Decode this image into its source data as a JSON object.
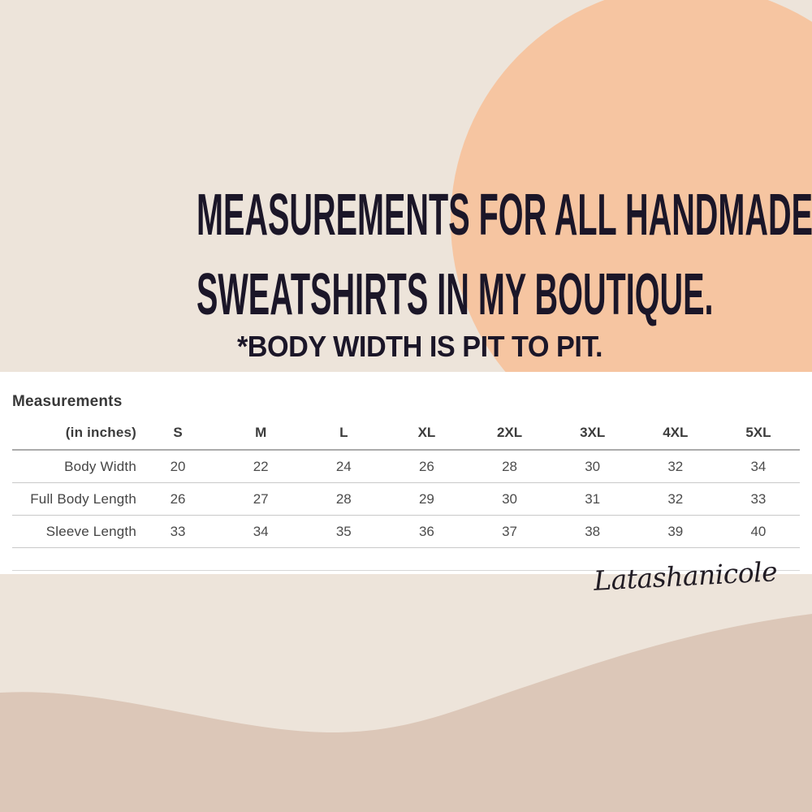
{
  "header": {
    "title_line1": "MEASUREMENTS FOR ALL HANDMADE",
    "title_line2": "SWEATSHIRTS IN MY BOUTIQUE.",
    "note": "*BODY WIDTH IS PIT TO PIT."
  },
  "size_chart": {
    "heading": "Measurements",
    "unit_label": "(in inches)",
    "columns": [
      "S",
      "M",
      "L",
      "XL",
      "2XL",
      "3XL",
      "4XL",
      "5XL"
    ],
    "rows": [
      {
        "label": "Body Width",
        "values": [
          "20",
          "22",
          "24",
          "26",
          "28",
          "30",
          "32",
          "34"
        ]
      },
      {
        "label": "Full Body Length",
        "values": [
          "26",
          "27",
          "28",
          "29",
          "30",
          "31",
          "32",
          "33"
        ]
      },
      {
        "label": "Sleeve Length",
        "values": [
          "33",
          "34",
          "35",
          "36",
          "37",
          "38",
          "39",
          "40"
        ]
      }
    ]
  },
  "signature": "Latashanicole",
  "colors": {
    "background": "#EDE4DA",
    "circle": "#F6C5A1",
    "wave": "#DCC7B8",
    "panel": "#FFFFFF",
    "title_text": "#1B1628"
  }
}
